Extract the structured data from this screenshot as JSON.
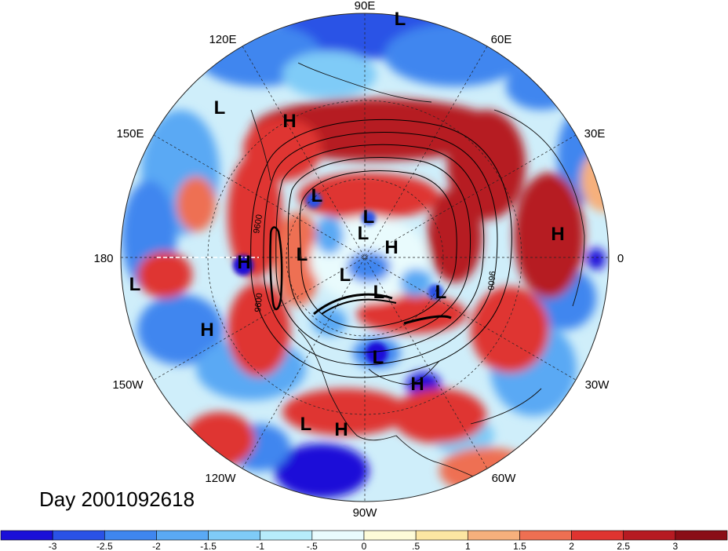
{
  "map": {
    "projection": "north polar stereographic",
    "longitude_labels": [
      "90E",
      "60E",
      "30E",
      "0",
      "30W",
      "60W",
      "90W",
      "120W",
      "150W",
      "180",
      "150E",
      "120E"
    ],
    "pressure_centers": [
      {
        "type": "L"
      },
      {
        "type": "L"
      },
      {
        "type": "H"
      },
      {
        "type": "L"
      },
      {
        "type": "L"
      },
      {
        "type": "H"
      },
      {
        "type": "H"
      },
      {
        "type": "L"
      },
      {
        "type": "L"
      },
      {
        "type": "L"
      },
      {
        "type": "L"
      },
      {
        "type": "L"
      },
      {
        "type": "L"
      },
      {
        "type": "H"
      },
      {
        "type": "H"
      },
      {
        "type": "L"
      },
      {
        "type": "H"
      },
      {
        "type": "L"
      },
      {
        "type": "H"
      }
    ],
    "contour_labels": [
      "9600",
      "9600",
      "9600"
    ],
    "date_label": "Day 2001092618"
  },
  "colorbar": {
    "tick_labels": [
      "-3",
      "-2.5",
      "-2",
      "-1.5",
      "-1",
      "-.5",
      "0",
      ".5",
      "1",
      "1.5",
      "2",
      "2.5",
      "3"
    ],
    "colors": [
      "#1a0fd8",
      "#2a52e6",
      "#3f86ef",
      "#5aa9f4",
      "#7fcbf7",
      "#b7ecfb",
      "#e9fbfd",
      "#fdfbd8",
      "#fce6a2",
      "#f6b07c",
      "#ee6f52",
      "#df3430",
      "#b61a22",
      "#8a0d16"
    ]
  }
}
